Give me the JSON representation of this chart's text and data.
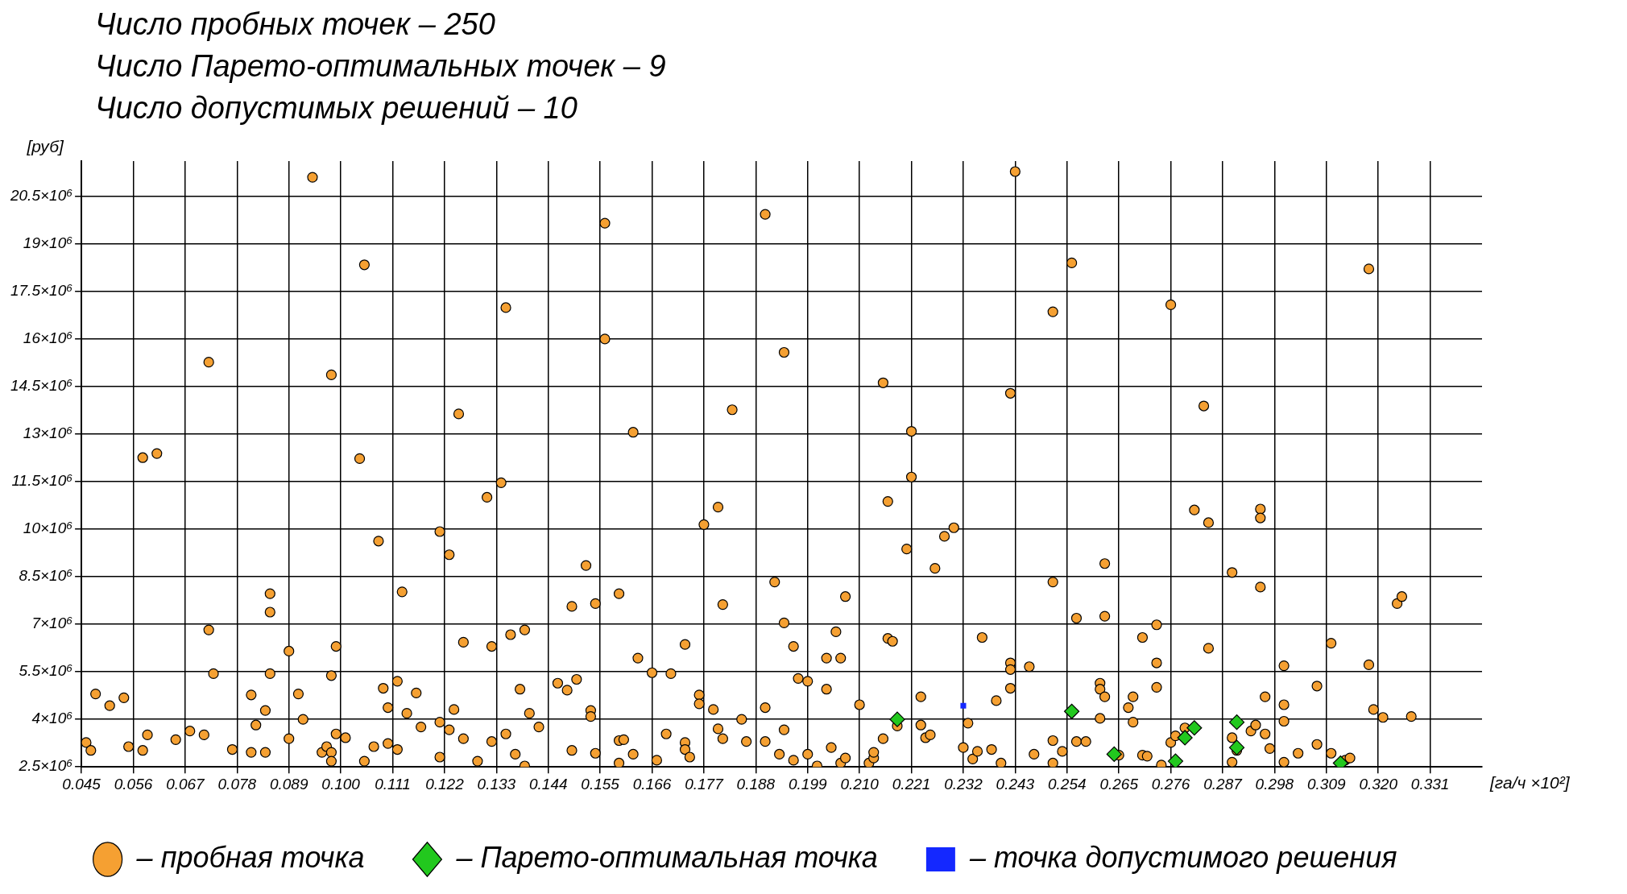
{
  "chart_data": {
    "type": "scatter",
    "title": "Число пробных точек – 250\nЧисло Парето-оптимальных точек – 9\nЧисло допустимых решений – 10",
    "xlabel": "[га/ч ×10²]",
    "ylabel": "[руб]",
    "xlim": [
      0.045,
      0.342
    ],
    "ylim": [
      2500000.0,
      21600000.0
    ],
    "xticks": [
      0.045,
      0.056,
      0.067,
      0.078,
      0.089,
      {
        "value": 0.1,
        "label": "0.100"
      },
      0.111,
      0.122,
      0.133,
      0.144,
      0.155,
      0.166,
      0.177,
      0.188,
      0.199,
      {
        "value": 0.21,
        "label": "0.210"
      },
      0.221,
      0.232,
      0.243,
      0.254,
      0.265,
      0.276,
      0.287,
      0.298,
      0.309,
      {
        "value": 0.32,
        "label": "0.320"
      },
      0.331
    ],
    "yticks": [
      {
        "value": 2500000.0,
        "label": "2.5×10⁶"
      },
      {
        "value": 4000000.0,
        "label": "4×10⁶"
      },
      {
        "value": 5500000.0,
        "label": "5.5×10⁶"
      },
      {
        "value": 7000000.0,
        "label": "7×10⁶"
      },
      {
        "value": 8500000.0,
        "label": "8.5×10⁶"
      },
      {
        "value": 10000000.0,
        "label": "10×10⁶"
      },
      {
        "value": 11500000.0,
        "label": "11.5×10⁶"
      },
      {
        "value": 13000000.0,
        "label": "13×10⁶"
      },
      {
        "value": 14500000.0,
        "label": "14.5×10⁶"
      },
      {
        "value": 16000000.0,
        "label": "16×10⁶"
      },
      {
        "value": 17500000.0,
        "label": "17.5×10⁶"
      },
      {
        "value": 19000000.0,
        "label": "19×10⁶"
      },
      {
        "value": 20500000.0,
        "label": "20.5×10⁶"
      }
    ],
    "grid": true,
    "legend": "bottom",
    "series": [
      {
        "name": "– пробная точка",
        "color": "#f5a032",
        "marker": "circle",
        "x": [
          0.046,
          0.047,
          0.048,
          0.051,
          0.054,
          0.055,
          0.058,
          0.059,
          0.058,
          0.061,
          0.065,
          0.068,
          0.071,
          0.072,
          0.072,
          0.073,
          0.077,
          0.081,
          0.081,
          0.082,
          0.084,
          0.085,
          0.085,
          0.085,
          0.084,
          0.089,
          0.089,
          0.091,
          0.092,
          0.094,
          0.096,
          0.097,
          0.098,
          0.098,
          0.098,
          0.099,
          0.098,
          0.099,
          0.101,
          0.104,
          0.105,
          0.105,
          0.107,
          0.108,
          0.109,
          0.11,
          0.11,
          0.112,
          0.112,
          0.113,
          0.114,
          0.116,
          0.117,
          0.121,
          0.121,
          0.121,
          0.123,
          0.123,
          0.124,
          0.125,
          0.126,
          0.126,
          0.129,
          0.131,
          0.132,
          0.132,
          0.134,
          0.135,
          0.135,
          0.136,
          0.137,
          0.138,
          0.139,
          0.139,
          0.14,
          0.142,
          0.146,
          0.148,
          0.149,
          0.149,
          0.15,
          0.152,
          0.153,
          0.153,
          0.154,
          0.154,
          0.156,
          0.156,
          0.159,
          0.159,
          0.16,
          0.159,
          0.162,
          0.163,
          0.162,
          0.166,
          0.167,
          0.169,
          0.17,
          0.173,
          0.173,
          0.173,
          0.174,
          0.176,
          0.176,
          0.177,
          0.179,
          0.18,
          0.18,
          0.181,
          0.181,
          0.183,
          0.185,
          0.186,
          0.19,
          0.19,
          0.19,
          0.192,
          0.193,
          0.194,
          0.194,
          0.194,
          0.196,
          0.196,
          0.197,
          0.199,
          0.199,
          0.201,
          0.203,
          0.203,
          0.204,
          0.205,
          0.206,
          0.207,
          0.207,
          0.206,
          0.21,
          0.212,
          0.213,
          0.213,
          0.215,
          0.215,
          0.216,
          0.216,
          0.217,
          0.218,
          0.22,
          0.221,
          0.221,
          0.223,
          0.223,
          0.224,
          0.225,
          0.226,
          0.228,
          0.23,
          0.232,
          0.233,
          0.234,
          0.235,
          0.236,
          0.238,
          0.239,
          0.24,
          0.242,
          0.242,
          0.242,
          0.242,
          0.243,
          0.246,
          0.247,
          0.251,
          0.251,
          0.251,
          0.251,
          0.253,
          0.255,
          0.256,
          0.256,
          0.258,
          0.261,
          0.262,
          0.262,
          0.261,
          0.261,
          0.262,
          0.265,
          0.267,
          0.268,
          0.268,
          0.27,
          0.27,
          0.271,
          0.273,
          0.273,
          0.273,
          0.274,
          0.276,
          0.276,
          0.277,
          0.279,
          0.281,
          0.283,
          0.284,
          0.284,
          0.289,
          0.289,
          0.289,
          0.29,
          0.293,
          0.294,
          0.295,
          0.295,
          0.295,
          0.296,
          0.296,
          0.297,
          0.3,
          0.3,
          0.3,
          0.3,
          0.303,
          0.307,
          0.307,
          0.31,
          0.31,
          0.313,
          0.314,
          0.318,
          0.318,
          0.319,
          0.321,
          0.324,
          0.325,
          0.327
        ],
        "values": [
          3270000.0,
          3020000.0,
          4800000.0,
          4430000.0,
          4680000.0,
          3140000.0,
          3020000.0,
          3510000.0,
          12250000.0,
          12380000.0,
          3360000.0,
          3630000.0,
          3510000.0,
          15260000.0,
          6820000.0,
          5440000.0,
          3050000.0,
          2960000.0,
          4770000.0,
          3820000.0,
          4280000.0,
          5440000.0,
          7380000.0,
          7960000.0,
          2960000.0,
          3390000.0,
          6150000.0,
          4800000.0,
          4000000.0,
          21090000.0,
          2960000.0,
          3140000.0,
          14860000.0,
          2960000.0,
          2680000.0,
          3540000.0,
          5380000.0,
          6300000.0,
          3420000.0,
          12220000.0,
          2680000.0,
          18330000.0,
          3140000.0,
          9620000.0,
          4980000.0,
          4370000.0,
          3240000.0,
          5200000.0,
          3050000.0,
          8020000.0,
          4190000.0,
          4830000.0,
          3760000.0,
          9920000.0,
          2810000.0,
          3910000.0,
          9190000.0,
          3670000.0,
          4310000.0,
          13630000.0,
          6430000.0,
          3390000.0,
          2680000.0,
          11000000.0,
          3300000.0,
          6300000.0,
          11460000.0,
          3540000.0,
          16980000.0,
          6670000.0,
          2900000.0,
          4950000.0,
          6820000.0,
          2530000.0,
          4190000.0,
          3760000.0,
          5140000.0,
          4920000.0,
          3020000.0,
          7560000.0,
          5260000.0,
          8850000.0,
          4280000.0,
          4090000.0,
          7650000.0,
          2930000.0,
          19640000.0,
          15990000.0,
          7960000.0,
          3330000.0,
          3360000.0,
          2620000.0,
          2900000.0,
          5930000.0,
          13050000.0,
          5470000.0,
          2710000.0,
          3540000.0,
          5440000.0,
          6360000.0,
          3270000.0,
          3050000.0,
          2810000.0,
          4770000.0,
          4490000.0,
          10140000.0,
          4310000.0,
          10690000.0,
          3700000.0,
          7620000.0,
          3390000.0,
          13760000.0,
          4000000.0,
          3300000.0,
          3300000.0,
          19920000.0,
          4370000.0,
          8330000.0,
          2900000.0,
          7040000.0,
          15570000.0,
          3670000.0,
          2710000.0,
          6300000.0,
          5290000.0,
          5200000.0,
          2900000.0,
          2530000.0,
          4950000.0,
          5930000.0,
          3110000.0,
          6760000.0,
          2620000.0,
          7870000.0,
          2780000.0,
          5930000.0,
          4460000.0,
          2620000.0,
          2780000.0,
          2960000.0,
          14610000.0,
          3390000.0,
          6550000.0,
          10870000.0,
          6460000.0,
          3790000.0,
          9370000.0,
          13080000.0,
          11640000.0,
          4710000.0,
          3820000.0,
          3420000.0,
          3510000.0,
          8760000.0,
          9770000.0,
          10040000.0,
          3110000.0,
          3880000.0,
          2750000.0,
          2990000.0,
          6580000.0,
          3050000.0,
          4590000.0,
          2620000.0,
          14280000.0,
          4980000.0,
          5780000.0,
          5570000.0,
          21270000.0,
          5660000.0,
          2900000.0,
          2620000.0,
          8330000.0,
          16850000.0,
          3330000.0,
          2990000.0,
          18390000.0,
          7190000.0,
          3300000.0,
          3300000.0,
          5140000.0,
          8910000.0,
          7250000.0,
          4030000.0,
          4950000.0,
          4710000.0,
          2870000.0,
          4370000.0,
          4710000.0,
          3910000.0,
          6580000.0,
          2870000.0,
          2840000.0,
          6980000.0,
          5780000.0,
          5010000.0,
          2560000.0,
          3270000.0,
          17070000.0,
          3480000.0,
          3730000.0,
          10600000.0,
          13880000.0,
          6240000.0,
          10200000.0,
          2650000.0,
          8630000.0,
          3420000.0,
          3020000.0,
          3630000.0,
          3820000.0,
          10630000.0,
          10350000.0,
          8170000.0,
          4710000.0,
          3540000.0,
          3080000.0,
          4460000.0,
          3940000.0,
          5690000.0,
          2650000.0,
          2930000.0,
          5050000.0,
          3210000.0,
          6400000.0,
          2930000.0,
          2710000.0,
          2780000.0,
          5720000.0,
          18200000.0,
          4310000.0,
          4060000.0,
          7650000.0,
          7870000.0,
          4090000.0
        ]
      },
      {
        "name": "– Парето-оптимальная точка",
        "color": "#22c81e",
        "marker": "diamond",
        "x": [
          0.218,
          0.255,
          0.264,
          0.277,
          0.279,
          0.281,
          0.29,
          0.29,
          0.312
        ],
        "values": [
          4000000.0,
          4250000.0,
          2900000.0,
          2680000.0,
          3420000.0,
          3730000.0,
          3910000.0,
          3110000.0,
          2620000.0
        ]
      },
      {
        "name": "– точка допустимого решения",
        "color": "#1428ff",
        "marker": "square",
        "x": [
          0.232
        ],
        "values": [
          4430000.0
        ]
      }
    ]
  }
}
